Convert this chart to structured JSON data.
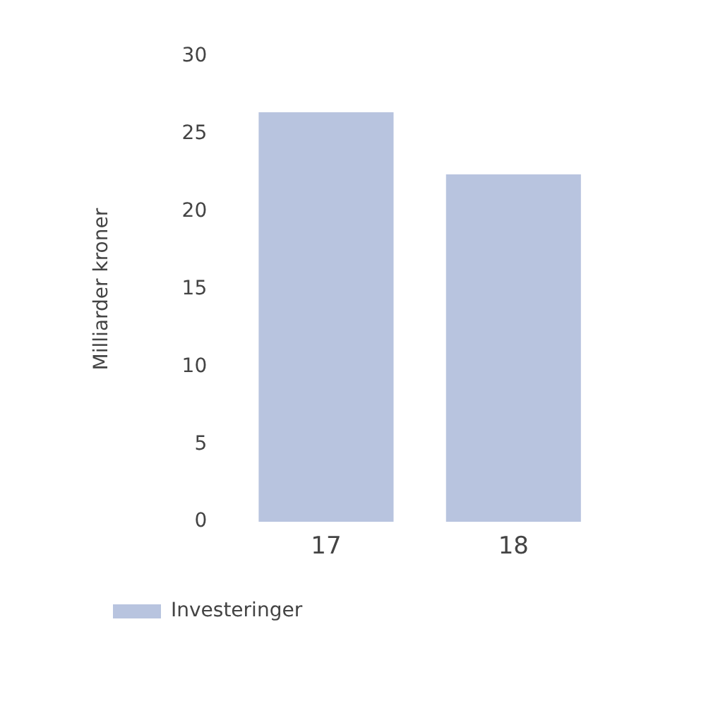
{
  "chart_data": {
    "type": "bar",
    "ylabel": "Milliarder kroner",
    "categories": [
      "17",
      "18"
    ],
    "series": [
      {
        "name": "Investeringer",
        "color": "#b8c4df",
        "values": [
          26.4,
          22.4
        ]
      }
    ],
    "ylim": [
      0,
      30
    ],
    "yticks": [
      0,
      5,
      10,
      15,
      20,
      25,
      30
    ],
    "grid": false,
    "legend": "bottom left"
  }
}
